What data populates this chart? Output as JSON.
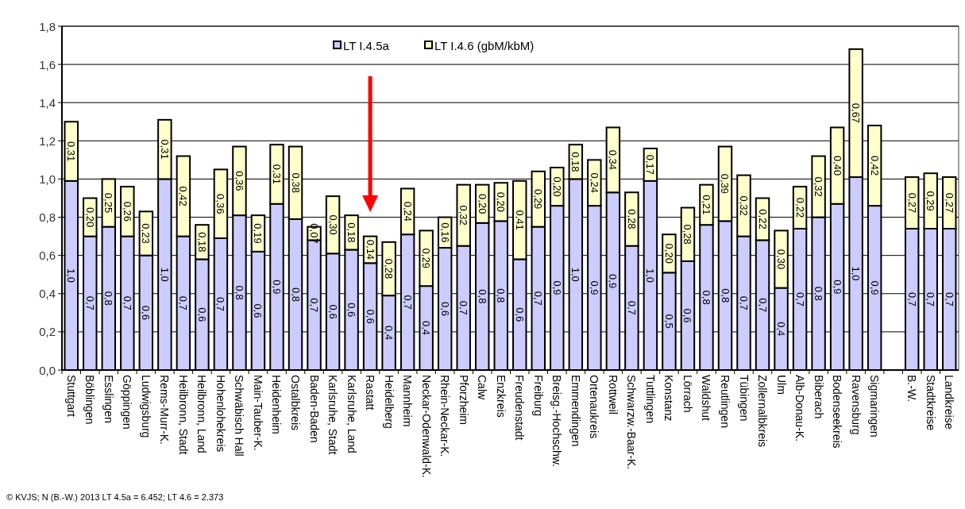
{
  "chart_data": {
    "type": "bar",
    "stacked": true,
    "categories": [
      "Stuttgart",
      "Böblingen",
      "Esslingen",
      "Göppingen",
      "Ludwigsburg",
      "Rems-Murr-K.",
      "Heilbronn, Stadt",
      "Heilbronn, Land",
      "Hohenlohekreis",
      "Schwäbisch Hall",
      "Main-Tauber-K.",
      "Heidenheim",
      "Ostalbkreis",
      "Baden-Baden",
      "Karlsruhe, Stadt",
      "Karlsruhe, Land",
      "Rastatt",
      "Heidelberg",
      "Mannheim",
      "Neckar-Odenwald-K.",
      "Rhein-Neckar-K.",
      "Pforzheim",
      "Calw",
      "Enzkreis",
      "Freudenstadt",
      "Freiburg",
      "Breisg.-Hochschw.",
      "Emmendingen",
      "Ortenaukreis",
      "Rottweil",
      "Schwarzw.-Baar-K.",
      "Tuttlingen",
      "Konstanz",
      "Lörrach",
      "Waldshut",
      "Reutlingen",
      "Tübingen",
      "Zollernalbkreis",
      "Ulm",
      "Alb-Donau-K.",
      "Biberach",
      "Bodenseekreis",
      "Ravensburg",
      "Sigmaringen",
      null,
      "B.-W.",
      "Stadtkreise",
      "Landkreise"
    ],
    "series": [
      {
        "name": "LT I.4.5a",
        "color": "#ccccff",
        "values": [
          0.99,
          0.7,
          0.75,
          0.7,
          0.6,
          1.0,
          0.7,
          0.58,
          0.69,
          0.81,
          0.62,
          0.87,
          0.79,
          0.68,
          0.61,
          0.63,
          0.56,
          0.39,
          0.71,
          0.44,
          0.64,
          0.65,
          0.77,
          0.78,
          0.58,
          0.75,
          0.86,
          1.0,
          0.86,
          0.93,
          0.65,
          0.99,
          0.51,
          0.57,
          0.76,
          0.78,
          0.7,
          0.68,
          0.43,
          0.74,
          0.8,
          0.87,
          1.01,
          0.86,
          null,
          0.74,
          0.74,
          0.74
        ],
        "value_labels": [
          "1,0",
          "0,7",
          "0,8",
          "0,7",
          "0,6",
          "1,0",
          "0,7",
          "0,6",
          "0,7",
          "0,8",
          "0,6",
          "0,9",
          "0,8",
          "0,7",
          "0,6",
          "0,6",
          "0,6",
          "0,4",
          "0,7",
          "0,4",
          "0,6",
          "0,7",
          "0,8",
          "0,8",
          "0,6",
          "0,7",
          "0,9",
          "1,0",
          "0,9",
          "0,9",
          "0,7",
          "1,0",
          "0,5",
          "0,6",
          "0,8",
          "0,8",
          "0,7",
          "0,7",
          "0,4",
          "0,7",
          "0,8",
          "0,9",
          "1,0",
          "0,9",
          null,
          "0,7",
          "0,7",
          "0,7"
        ]
      },
      {
        "name": "LT I.4.6 (gbM/kbM)",
        "color": "#ffffcc",
        "values": [
          0.31,
          0.2,
          0.25,
          0.26,
          0.23,
          0.31,
          0.42,
          0.18,
          0.36,
          0.36,
          0.19,
          0.31,
          0.38,
          0.07,
          0.3,
          0.18,
          0.14,
          0.28,
          0.24,
          0.29,
          0.16,
          0.32,
          0.2,
          0.2,
          0.41,
          0.29,
          0.2,
          0.18,
          0.24,
          0.34,
          0.28,
          0.17,
          0.2,
          0.28,
          0.21,
          0.39,
          0.32,
          0.22,
          0.3,
          0.22,
          0.32,
          0.4,
          0.67,
          0.42,
          null,
          0.27,
          0.29,
          0.27
        ],
        "value_labels": [
          "0,31",
          "0,20",
          "0,25",
          "0,26",
          "0,23",
          "0,31",
          "0,42",
          "0,18",
          "0,36",
          "0,36",
          "0,19",
          "0,31",
          "0,38",
          "0,07",
          "0,30",
          "0,18",
          "0,14",
          "0,28",
          "0,24",
          "0,29",
          "0,16",
          "0,32",
          "0,20",
          "0,20",
          "0,41",
          "0,29",
          "0,20",
          "0,18",
          "0,24",
          "0,34",
          "0,28",
          "0,17",
          "0,20",
          "0,28",
          "0,21",
          "0,39",
          "0,32",
          "0,22",
          "0,30",
          "0,22",
          "0,32",
          "0,40",
          "0,67",
          "0,42",
          null,
          "0,27",
          "0,29",
          "0,27"
        ]
      }
    ],
    "ylim": [
      0,
      1.8
    ],
    "yticks": [
      {
        "value": 0,
        "label": "0,0"
      },
      {
        "value": 0.2,
        "label": "0,2"
      },
      {
        "value": 0.4,
        "label": "0,4"
      },
      {
        "value": 0.6,
        "label": "0,6"
      },
      {
        "value": 0.8,
        "label": "0,8"
      },
      {
        "value": 1.0,
        "label": "1,0"
      },
      {
        "value": 1.2,
        "label": "1,2"
      },
      {
        "value": 1.4,
        "label": "1,4"
      },
      {
        "value": 1.6,
        "label": "1,6"
      },
      {
        "value": 1.8,
        "label": "1,8"
      }
    ],
    "grid": "y",
    "legend": "top",
    "annotations": [
      "© KVJS; N (B.-W.) 2013 LT 4.5a = 6.452; LT 4.6 = 2.373"
    ]
  }
}
